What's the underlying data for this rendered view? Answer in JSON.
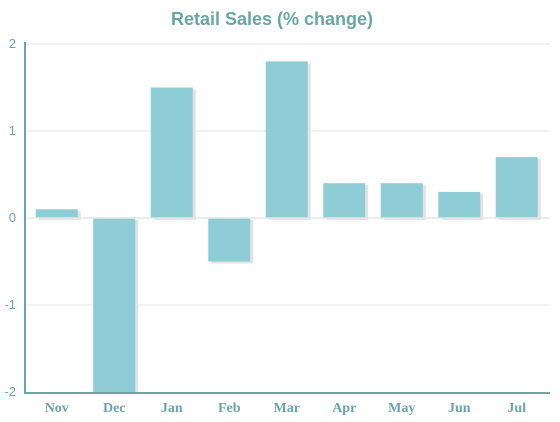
{
  "colors": {
    "bar": "#8ecdd5",
    "bar_shadow": "#e3e3e3",
    "text": "#6aa6a4",
    "title": "#6aa6a4",
    "axis": "#6aa6a4",
    "grid": "#e6e6e6"
  },
  "chart_data": {
    "type": "bar",
    "title": "Retail Sales (% change)",
    "xlabel": "",
    "ylabel": "",
    "categories": [
      "Nov",
      "Dec",
      "Jan",
      "Feb",
      "Mar",
      "Apr",
      "May",
      "Jun",
      "Jul"
    ],
    "values": [
      0.1,
      -2.0,
      1.5,
      -0.5,
      1.8,
      0.4,
      0.4,
      0.3,
      0.7
    ],
    "ylim": [
      -2,
      2
    ],
    "yticks": [
      "2",
      "1",
      "0",
      "-1",
      "-2"
    ],
    "grid": true,
    "legend": "none"
  }
}
